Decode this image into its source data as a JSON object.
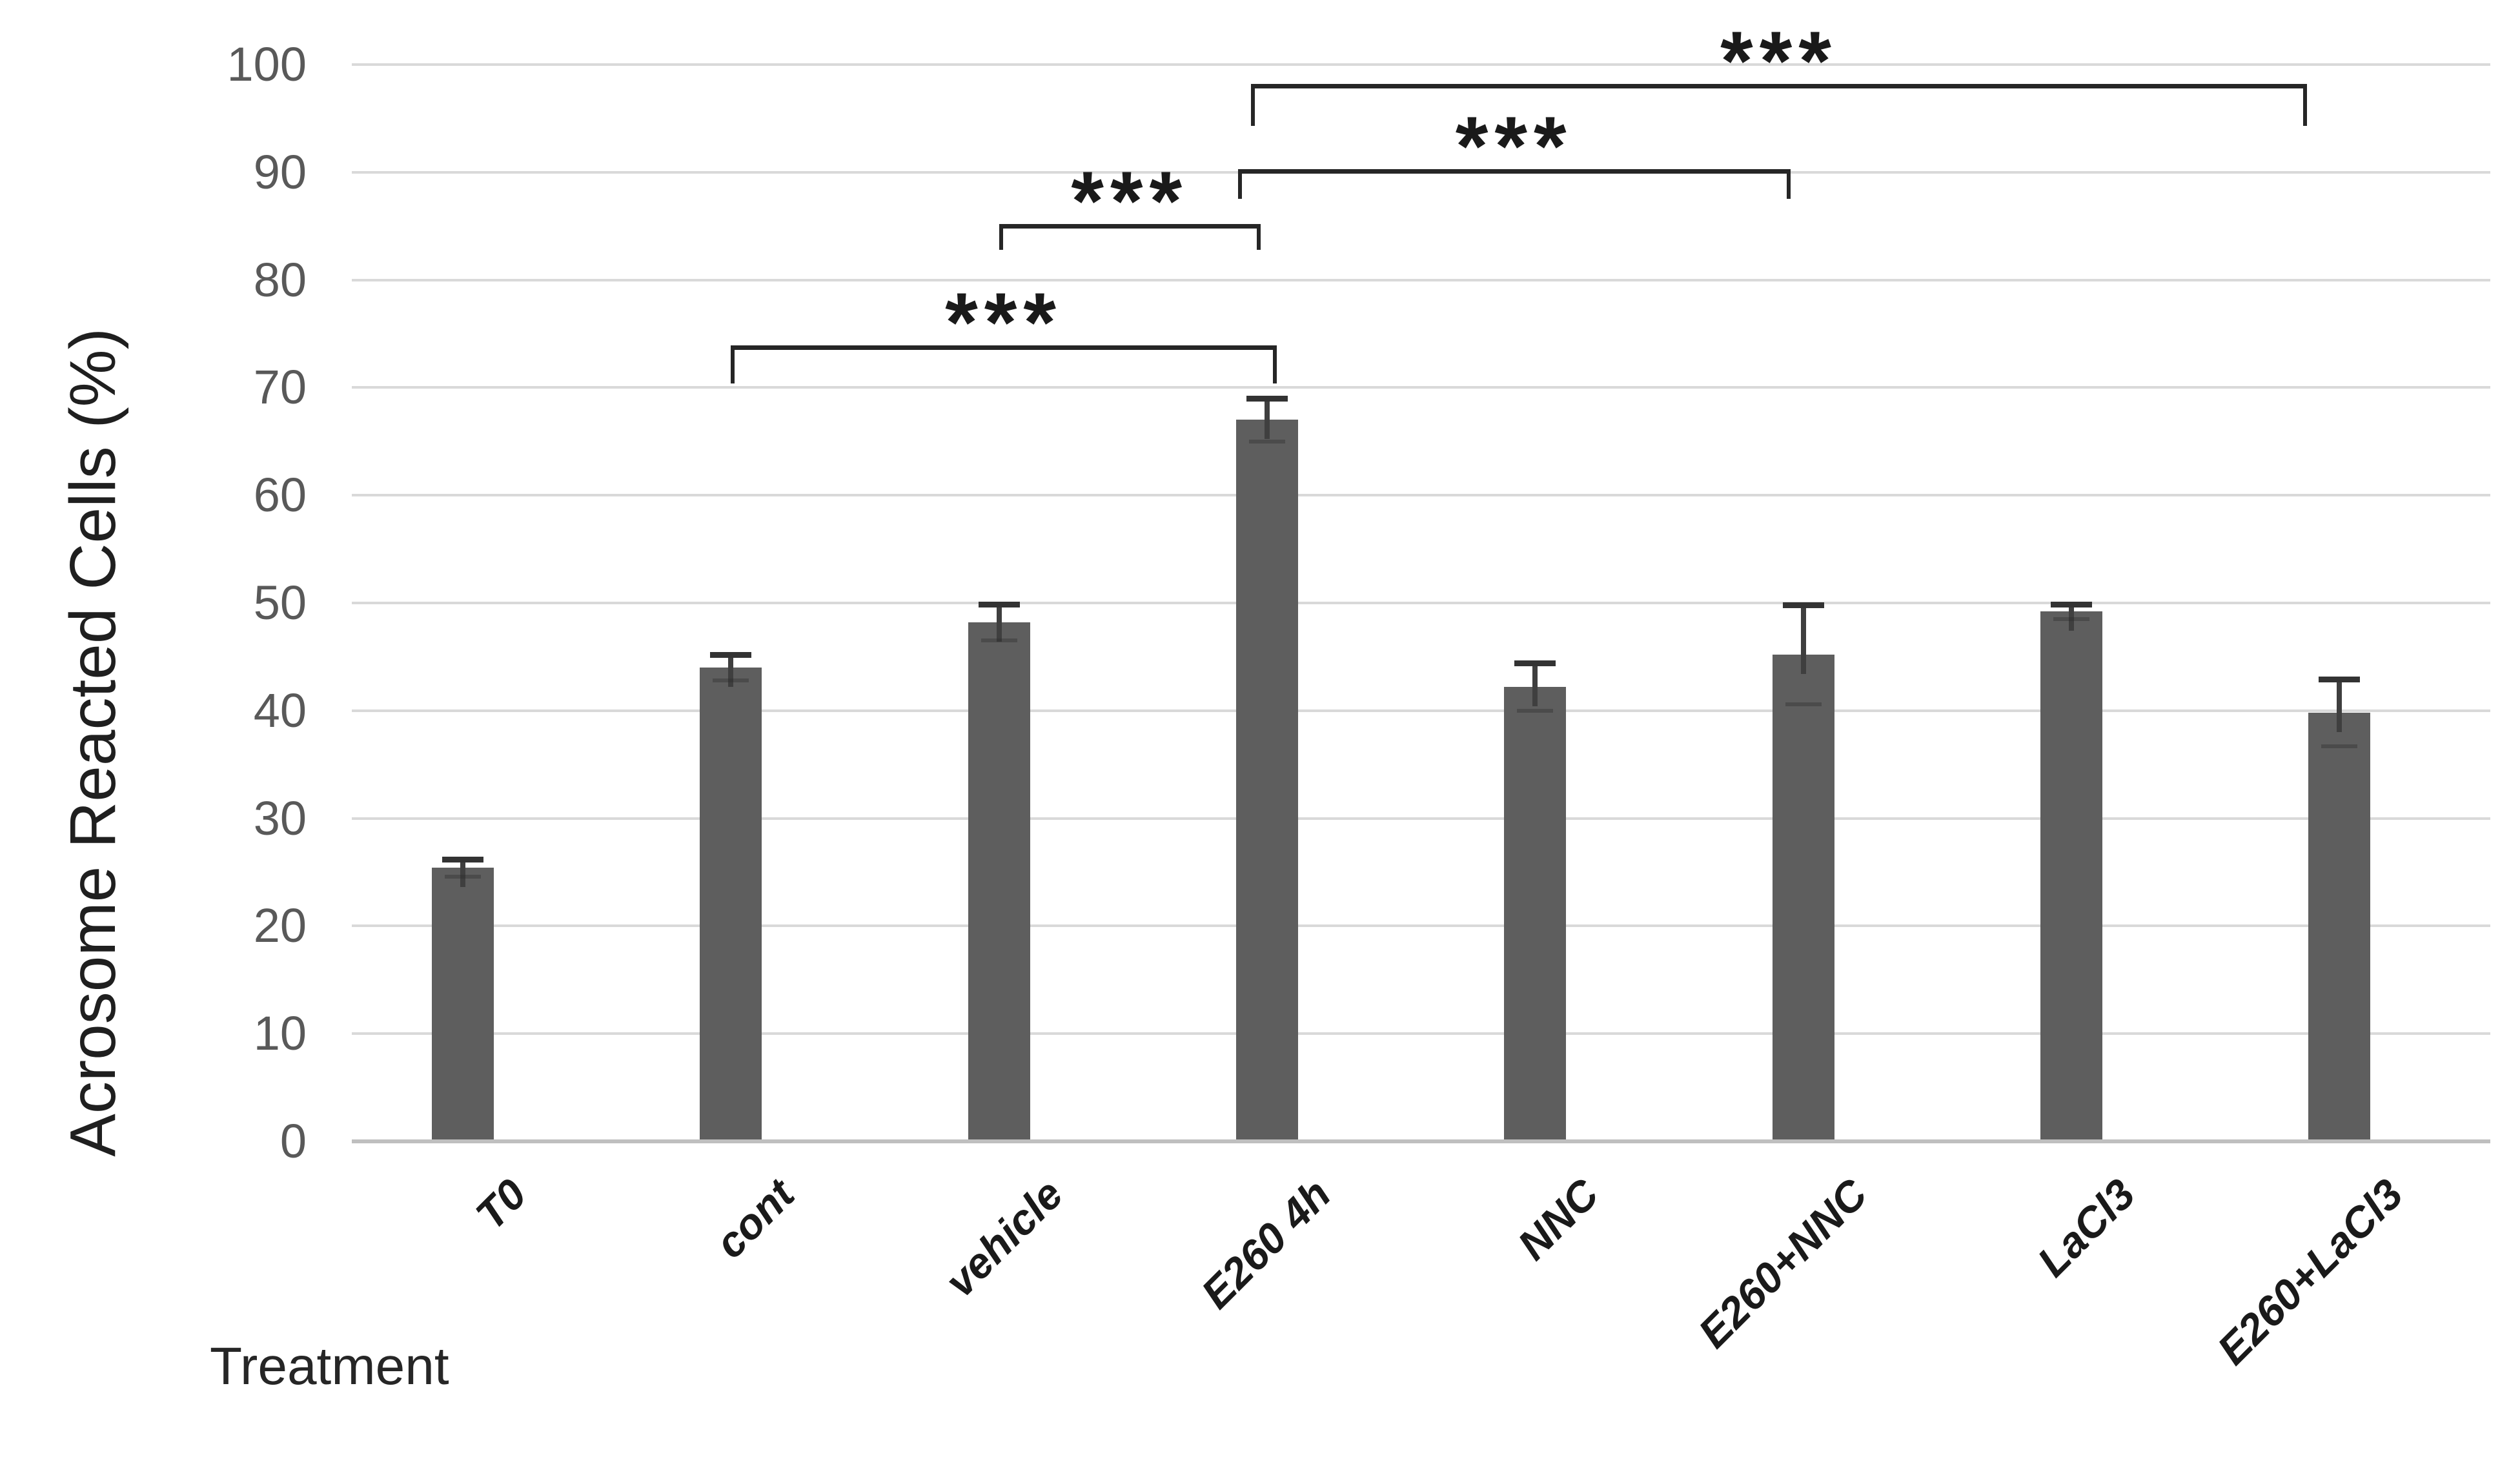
{
  "chart_data": {
    "type": "bar",
    "title": "",
    "ylabel": "Acrosome Reacted Cells (%)",
    "xlabel": "Treatment",
    "categories": [
      "T0",
      "cont",
      "vehicle",
      "E260 4h",
      "NNC",
      "E260+NNC",
      "LaCl3",
      "E260+LaCl3"
    ],
    "values": [
      25.4,
      44.0,
      48.2,
      67.0,
      42.2,
      45.2,
      49.2,
      39.8
    ],
    "errors_plus": [
      0.8,
      1.2,
      1.7,
      2.0,
      2.2,
      4.6,
      0.7,
      3.1
    ],
    "ylim": [
      0,
      100
    ],
    "yticks": [
      0,
      10,
      20,
      30,
      40,
      50,
      60,
      70,
      80,
      90,
      100
    ],
    "grid": "horizontal",
    "legend": "none",
    "bar_color": "#5e5e5e",
    "error_bar_color": "#3f3f3f",
    "gridline_color": "#d9d9d9",
    "axis_line_color": "#bfbfbf",
    "tick_label_color": "#595959",
    "text_color": "#1a1a1a",
    "significance_brackets": [
      {
        "from": "E260 4h",
        "to": "E260+LaCl3",
        "label": "***",
        "line_value": 98.2,
        "drop_value": 94.3
      },
      {
        "from": "E260 4h",
        "to": "E260+NNC",
        "label": "***",
        "line_value": 90.3,
        "drop_value": 87.5
      },
      {
        "from": "vehicle",
        "to": "E260 4h",
        "label": "***",
        "line_value": 85.2,
        "drop_value": 82.8
      },
      {
        "from": "cont",
        "to": "E260 4h",
        "label": "***",
        "line_value": 73.9,
        "drop_value": 70.4
      }
    ]
  }
}
